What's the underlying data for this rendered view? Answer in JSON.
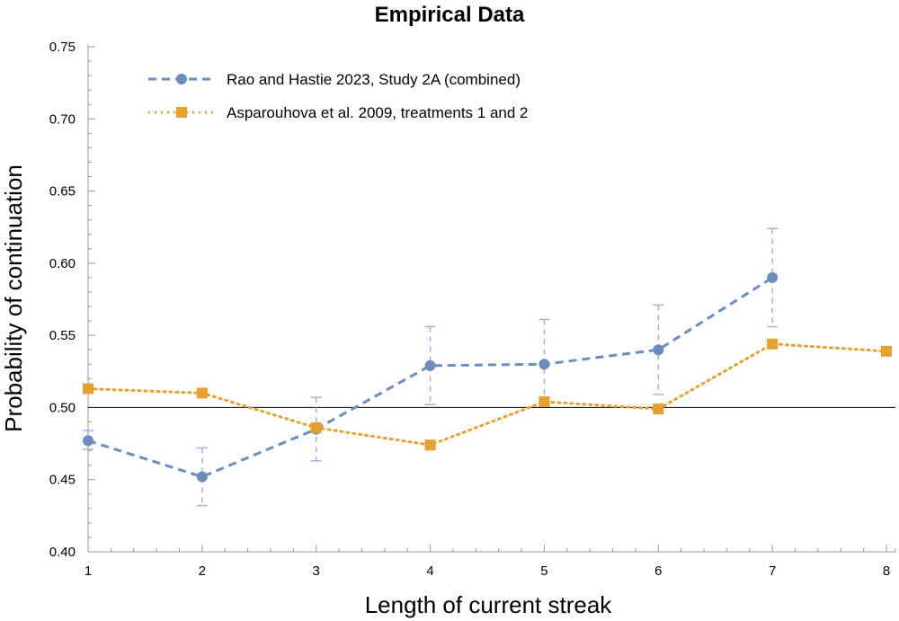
{
  "chart_data": {
    "type": "line",
    "title": "Empirical Data",
    "xlabel": "Length of current streak",
    "ylabel": "Probability of continuation",
    "xlim": [
      1,
      8
    ],
    "ylim": [
      0.4,
      0.75
    ],
    "x_ticks": [
      "1",
      "2",
      "3",
      "4",
      "5",
      "6",
      "7",
      "8"
    ],
    "y_ticks": [
      "0.40",
      "0.45",
      "0.50",
      "0.55",
      "0.60",
      "0.65",
      "0.70",
      "0.75"
    ],
    "reference_line": 0.5,
    "legend_position": "top-left",
    "series": [
      {
        "name": "Rao and Hastie 2023, Study 2A (combined)",
        "color": "#6b8cbf",
        "line_style": "dashed",
        "marker": "circle",
        "x": [
          1,
          2,
          3,
          4,
          5,
          6,
          7
        ],
        "values": [
          0.477,
          0.452,
          0.485,
          0.529,
          0.53,
          0.54,
          0.59
        ],
        "error_low": [
          0.471,
          0.432,
          0.463,
          0.502,
          0.501,
          0.509,
          0.556
        ],
        "error_high": [
          0.484,
          0.472,
          0.507,
          0.556,
          0.561,
          0.571,
          0.624
        ]
      },
      {
        "name": "Asparouhova et al. 2009, treatments 1 and 2",
        "color": "#e8a02c",
        "line_style": "dotted",
        "marker": "square",
        "x": [
          1,
          2,
          3,
          4,
          5,
          6,
          7,
          8
        ],
        "values": [
          0.513,
          0.51,
          0.486,
          0.474,
          0.504,
          0.499,
          0.544,
          0.539
        ]
      }
    ]
  }
}
